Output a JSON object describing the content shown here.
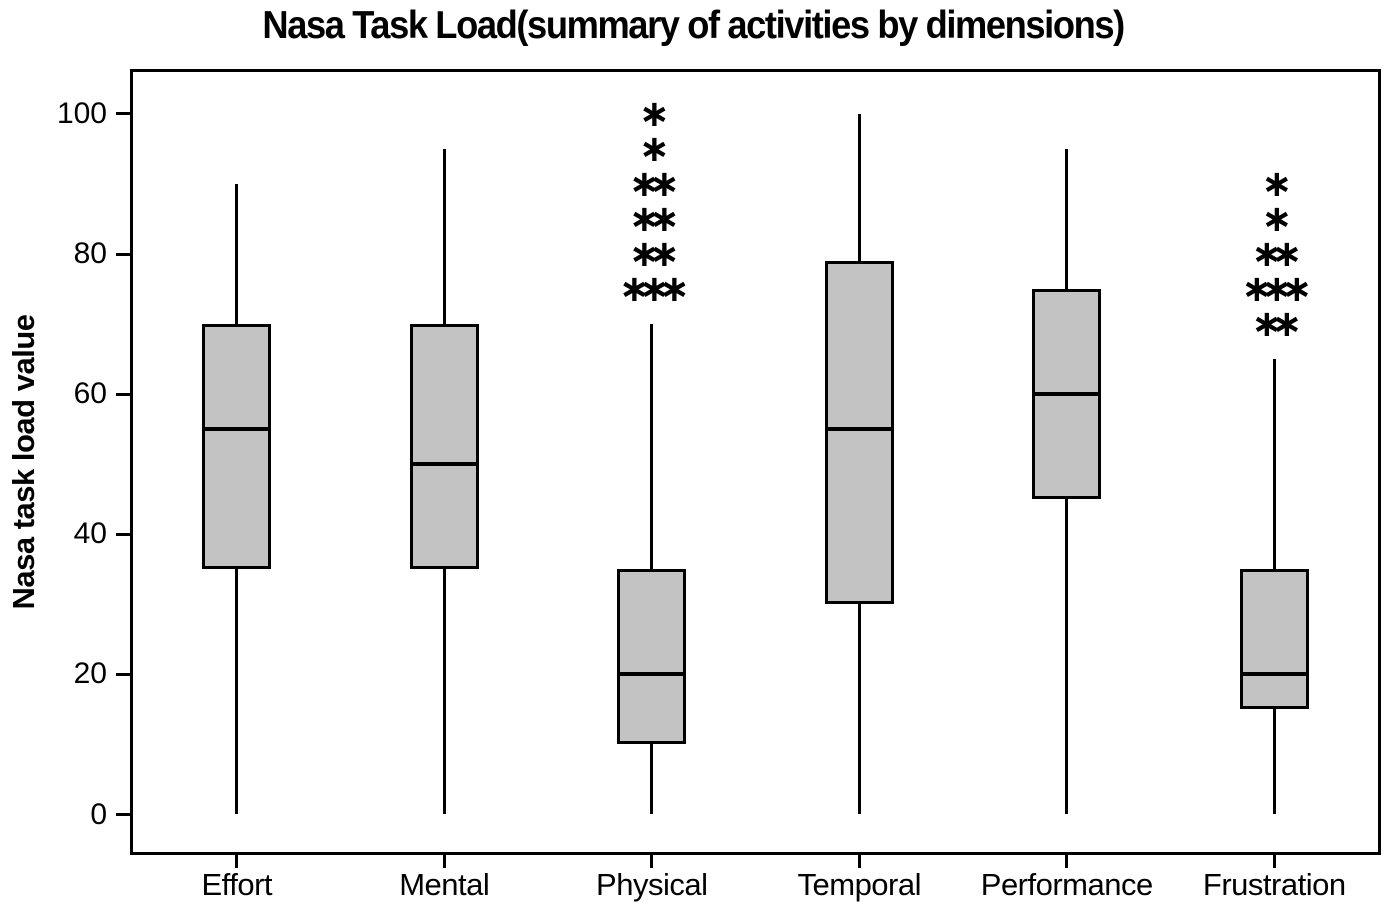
{
  "chart_data": {
    "type": "boxplot",
    "title": "Nasa Task Load(summary of activities by dimensions)",
    "ylabel": "Nasa task load value",
    "xlabel": "",
    "ylim": [
      0,
      100
    ],
    "yticks": [
      0,
      20,
      40,
      60,
      80,
      100
    ],
    "grid": false,
    "legend": "none",
    "categories": [
      "Effort",
      "Mental",
      "Physical",
      "Temporal",
      "Performance",
      "Frustration"
    ],
    "boxes": [
      {
        "category": "Effort",
        "whisker_low": 0,
        "q1": 35,
        "median": 55,
        "q3": 70,
        "whisker_high": 90,
        "outliers": []
      },
      {
        "category": "Mental",
        "whisker_low": 0,
        "q1": 35,
        "median": 50,
        "q3": 70,
        "whisker_high": 95,
        "outliers": []
      },
      {
        "category": "Physical",
        "whisker_low": 0,
        "q1": 10,
        "median": 20,
        "q3": 35,
        "whisker_high": 70,
        "outliers": [
          75,
          75,
          75,
          80,
          80,
          85,
          85,
          90,
          90,
          95,
          100
        ]
      },
      {
        "category": "Temporal",
        "whisker_low": 0,
        "q1": 30,
        "median": 55,
        "q3": 79,
        "whisker_high": 100,
        "outliers": []
      },
      {
        "category": "Performance",
        "whisker_low": 0,
        "q1": 45,
        "median": 60,
        "q3": 75,
        "whisker_high": 95,
        "outliers": []
      },
      {
        "category": "Frustration",
        "whisker_low": 0,
        "q1": 15,
        "median": 20,
        "q3": 35,
        "whisker_high": 65,
        "outliers": [
          70,
          70,
          75,
          75,
          75,
          80,
          80,
          85,
          90
        ]
      }
    ],
    "colors": {
      "box_fill": "#c3c3c3",
      "stroke": "#000000",
      "background": "#ffffff",
      "text": "#000000"
    },
    "outlier_marker": "∗"
  }
}
